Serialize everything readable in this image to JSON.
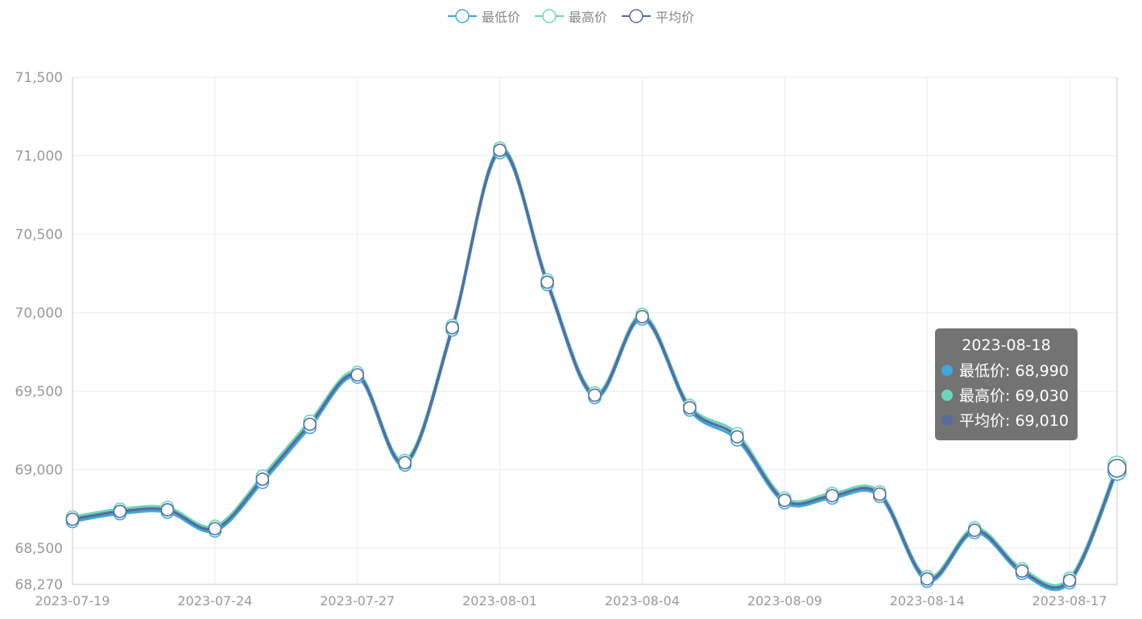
{
  "chart_data": {
    "type": "line",
    "title": "",
    "xlabel": "",
    "ylabel": "",
    "ylim": [
      68270,
      71500
    ],
    "y_ticks": [
      68270,
      68500,
      69000,
      69500,
      70000,
      70500,
      71000,
      71500
    ],
    "y_tick_labels": [
      "68,270",
      "68,500",
      "69,000",
      "69,500",
      "70,000",
      "70,500",
      "71,000",
      "71,500"
    ],
    "x_tick_labels": [
      "2023-07-19",
      "2023-07-24",
      "2023-07-27",
      "2023-08-01",
      "2023-08-04",
      "2023-08-09",
      "2023-08-14",
      "2023-08-17"
    ],
    "x_tick_label_index": [
      0,
      3,
      6,
      9,
      12,
      15,
      18,
      21
    ],
    "grid": true,
    "legend_position": "top-center",
    "x": [
      "2023-07-19",
      "2023-07-20",
      "2023-07-21",
      "2023-07-24",
      "2023-07-25",
      "2023-07-26",
      "2023-07-27",
      "2023-07-28",
      "2023-07-31",
      "2023-08-01",
      "2023-08-02",
      "2023-08-03",
      "2023-08-04",
      "2023-08-07",
      "2023-08-08",
      "2023-08-09",
      "2023-08-10",
      "2023-08-11",
      "2023-08-14",
      "2023-08-15",
      "2023-08-16",
      "2023-08-17",
      "2023-08-18"
    ],
    "series": [
      {
        "name": "最低价",
        "color": "#3fa7dc",
        "values": [
          68670,
          68720,
          68730,
          68610,
          68920,
          69270,
          69590,
          69030,
          69890,
          71020,
          70180,
          69460,
          69960,
          69380,
          69190,
          68790,
          68820,
          68830,
          68290,
          68600,
          68340,
          68280,
          68990
        ]
      },
      {
        "name": "最高价",
        "color": "#6ad7b8",
        "values": [
          68700,
          68750,
          68760,
          68640,
          68960,
          69310,
          69620,
          69060,
          69920,
          71050,
          70210,
          69490,
          69990,
          69410,
          69230,
          68820,
          68850,
          68860,
          68320,
          68630,
          68370,
          68310,
          69030
        ]
      },
      {
        "name": "平均价",
        "color": "#5a6b9b",
        "values": [
          68685,
          68735,
          68745,
          68625,
          68940,
          69290,
          69605,
          69045,
          69905,
          71035,
          70195,
          69475,
          69975,
          69395,
          69210,
          68805,
          68835,
          68845,
          68305,
          68615,
          68355,
          68295,
          69010
        ]
      }
    ]
  },
  "legend": [
    {
      "label": "最低价",
      "color": "#3fa7dc"
    },
    {
      "label": "最高价",
      "color": "#6ad7b8"
    },
    {
      "label": "平均价",
      "color": "#5a6b9b"
    }
  ],
  "tooltip": {
    "date": "2023-08-18",
    "rows": [
      {
        "text": "最低价: 68,990",
        "color": "#3fa7dc"
      },
      {
        "text": "最高价: 69,030",
        "color": "#6ad7b8"
      },
      {
        "text": "平均价: 69,010",
        "color": "#5a6b9b"
      }
    ]
  }
}
